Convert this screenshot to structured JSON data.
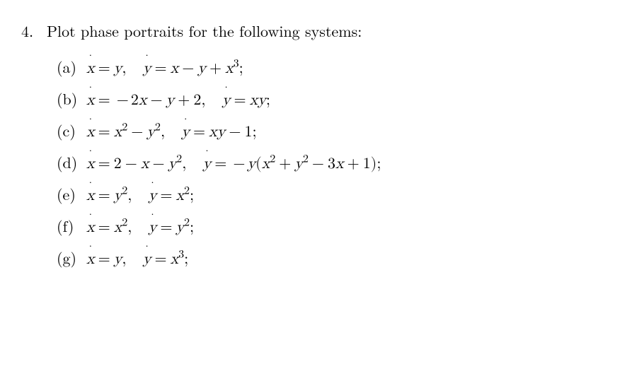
{
  "problem": {
    "number": "4.",
    "prompt": "Plot phase portraits for the following systems:",
    "font_size_pt": 22,
    "text_color": "#000000",
    "background_color": "#ffffff"
  },
  "items": [
    {
      "label": "(a)",
      "xdot": {
        "pre": "",
        "terms": "y"
      },
      "ydot": {
        "pre": "",
        "terms": "x − y + x³"
      },
      "raw": "ẋ = y,   ẏ = x − y + x³;"
    },
    {
      "label": "(b)",
      "xdot": {
        "pre": "−",
        "terms": "2x − y + 2"
      },
      "ydot": {
        "pre": "",
        "terms": "xy"
      },
      "raw": "ẋ = −2x − y + 2,   ẏ = xy;"
    },
    {
      "label": "(c)",
      "xdot": {
        "pre": "",
        "terms": "x² − y²"
      },
      "ydot": {
        "pre": "",
        "terms": "xy − 1"
      },
      "raw": "ẋ = x² − y²,   ẏ = xy − 1;"
    },
    {
      "label": "(d)",
      "xdot": {
        "pre": "",
        "terms": "2 − x − y²"
      },
      "ydot": {
        "pre": "−",
        "terms": "y(x² + y² − 3x + 1)"
      },
      "raw": "ẋ = 2 − x − y²,   ẏ = −y(x² + y² − 3x + 1);"
    },
    {
      "label": "(e)",
      "xdot": {
        "pre": "",
        "terms": "y²"
      },
      "ydot": {
        "pre": "",
        "terms": "x²"
      },
      "raw": "ẋ = y²,   ẏ = x²;"
    },
    {
      "label": "(f)",
      "xdot": {
        "pre": "",
        "terms": "x²"
      },
      "ydot": {
        "pre": "",
        "terms": "y²"
      },
      "raw": "ẋ = x²,   ẏ = y²;"
    },
    {
      "label": "(g)",
      "xdot": {
        "pre": "",
        "terms": "y"
      },
      "ydot": {
        "pre": "",
        "terms": "x³"
      },
      "raw": "ẋ = y,   ẏ = x³;"
    }
  ]
}
